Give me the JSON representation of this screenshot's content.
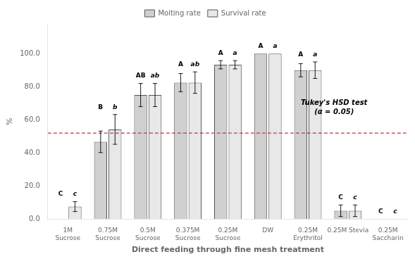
{
  "chart_data": {
    "type": "bar",
    "categories": [
      "1M\nSucrose",
      "0.75M\nSucrose",
      "0.5M\nSucrose",
      "0.375M\nSucrose",
      "0.25M\nSucrose",
      "DW",
      "0.25M\nErythritol",
      "0.25M Stevia",
      "0.25M\nSaccharin"
    ],
    "series": [
      {
        "name": "Molting rate",
        "color": "#d0d0d0",
        "values": [
          0.0,
          46.7,
          75.0,
          82.5,
          93.3,
          100.0,
          90.0,
          5.0,
          0.0
        ],
        "errors": [
          0.0,
          6.5,
          7.0,
          5.5,
          2.5,
          0.0,
          4.0,
          3.5,
          0.0
        ],
        "labels": [
          "C",
          "B",
          "AB",
          "A",
          "A",
          "A",
          "A",
          "C",
          "C"
        ]
      },
      {
        "name": "Survival rate",
        "color": "#e8e8e8",
        "values": [
          7.5,
          54.2,
          75.0,
          82.5,
          93.3,
          100.0,
          90.0,
          5.0,
          0.0
        ],
        "errors": [
          3.0,
          9.0,
          7.0,
          6.5,
          2.5,
          0.0,
          5.0,
          3.5,
          0.0
        ],
        "labels": [
          "c",
          "b",
          "ab",
          "ab",
          "a",
          "a",
          "a",
          "c",
          "c"
        ]
      }
    ],
    "ylabel": "%",
    "xlabel": "Direct feeding through fine mesh treatment",
    "ylim": [
      0,
      118
    ],
    "yticks": [
      {
        "value": 0,
        "label": "0.0"
      },
      {
        "value": 20,
        "label": "20.0"
      },
      {
        "value": 40,
        "label": "40.0"
      },
      {
        "value": 60,
        "label": "60.0"
      },
      {
        "value": 80,
        "label": "80.0"
      },
      {
        "value": 100,
        "label": "100.0"
      }
    ],
    "grid": false,
    "legend": "top",
    "annotations": [
      "Tukey's HSD test\n(α = 0.05)"
    ],
    "reference_line": {
      "y": 52,
      "color": "#cc3333",
      "line_style": "dashed"
    }
  }
}
